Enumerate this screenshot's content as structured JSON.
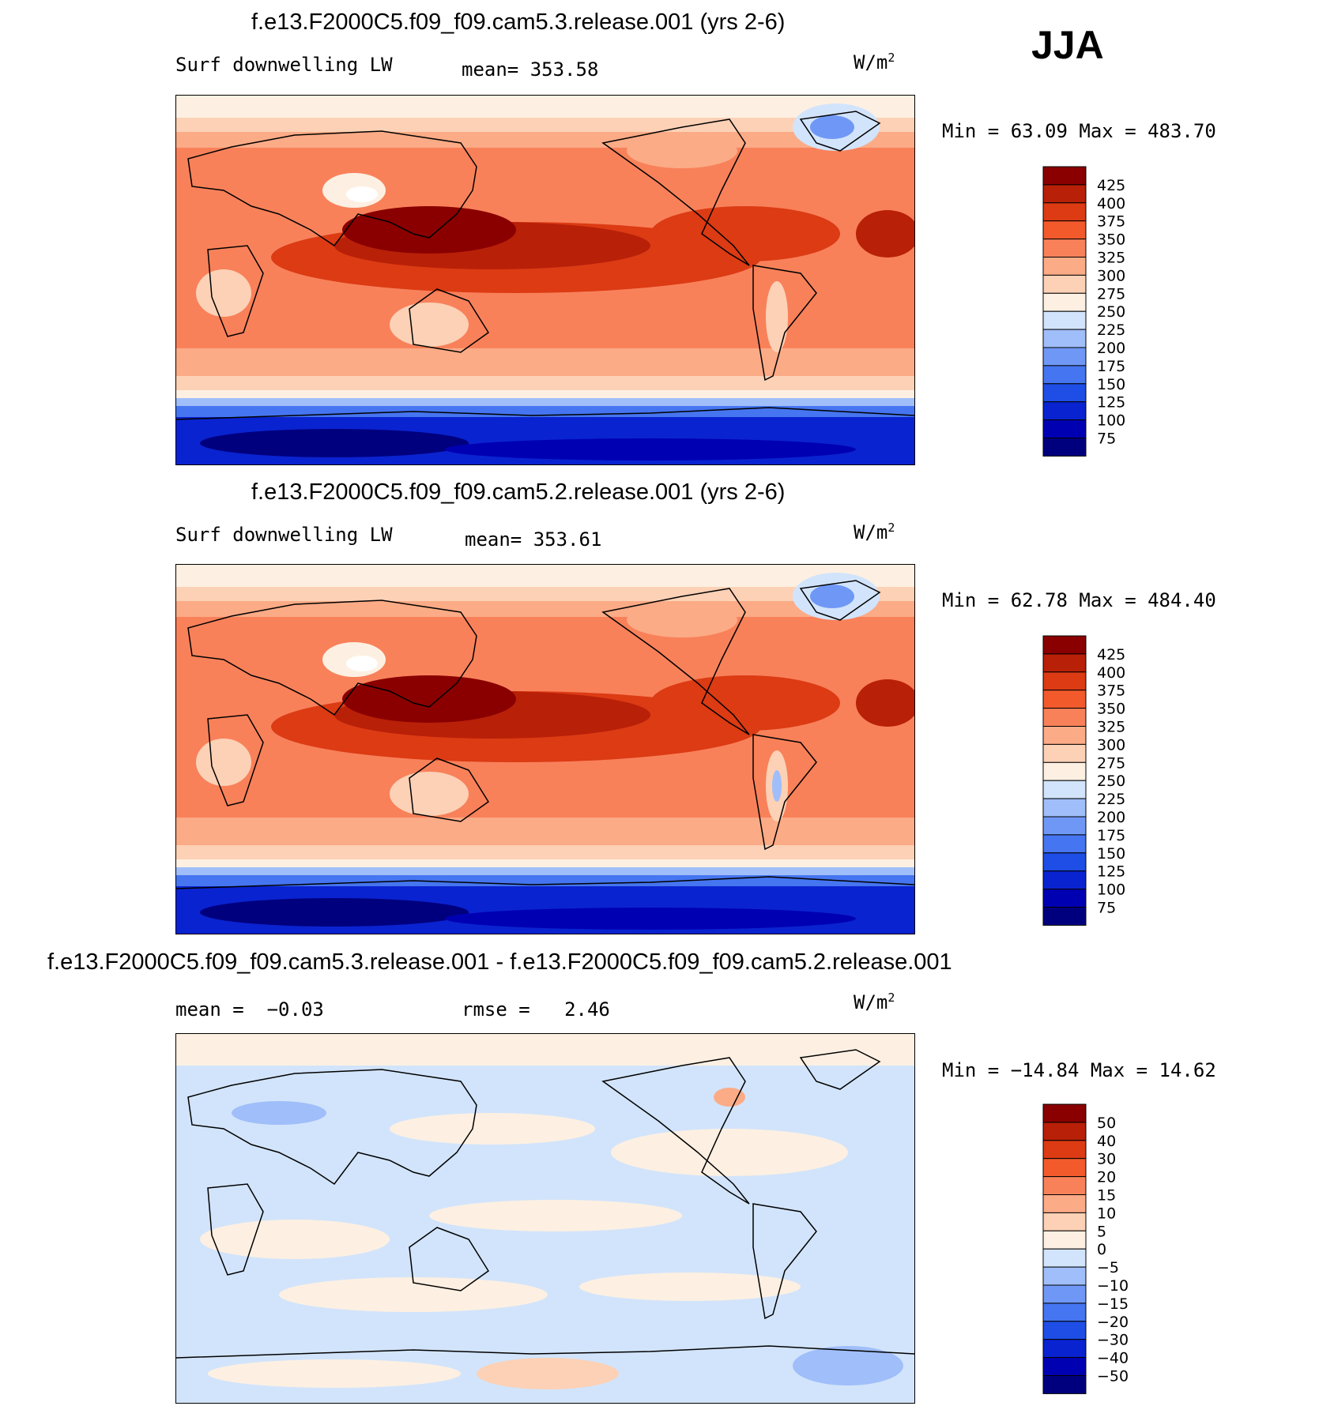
{
  "season": "JJA",
  "colors": {
    "abs_scale": [
      "#00007f",
      "#0000b3",
      "#0a23d0",
      "#1e4ee6",
      "#4575f0",
      "#6f98f6",
      "#a0bef9",
      "#d2e4fb",
      "#fdf0e2",
      "#fcd1b6",
      "#fbab86",
      "#f8815a",
      "#f25a2c",
      "#dc3b14",
      "#b82008",
      "#8a0000"
    ],
    "diff_scale": [
      "#00007f",
      "#0000b3",
      "#0a23d0",
      "#1e4ee6",
      "#4575f0",
      "#6f98f6",
      "#a0bef9",
      "#d2e4fb",
      "#fdf0e2",
      "#fcd1b6",
      "#fbab86",
      "#f8815a",
      "#f25a2c",
      "#dc3b14",
      "#b82008",
      "#8a0000"
    ]
  },
  "panels": [
    {
      "title": "f.e13.F2000C5.f09_f09.cam5.3.release.001 (yrs 2-6)",
      "left_label": "Surf downwelling LW",
      "stat_label": "mean=",
      "stat_value": "353.58",
      "units_base": "W/m",
      "units_exp": "2",
      "minmax": "Min =   63.09 Max =  483.70",
      "colorbar_labels": [
        "425",
        "400",
        "375",
        "350",
        "325",
        "300",
        "275",
        "250",
        "225",
        "200",
        "175",
        "150",
        "125",
        "100",
        "75"
      ]
    },
    {
      "title": "f.e13.F2000C5.f09_f09.cam5.2.release.001 (yrs 2-6)",
      "left_label": "Surf downwelling LW",
      "stat_label": "mean=",
      "stat_value": "353.61",
      "units_base": "W/m",
      "units_exp": "2",
      "minmax": "Min =   62.78 Max =  484.40",
      "colorbar_labels": [
        "425",
        "400",
        "375",
        "350",
        "325",
        "300",
        "275",
        "250",
        "225",
        "200",
        "175",
        "150",
        "125",
        "100",
        "75"
      ]
    },
    {
      "title": "f.e13.F2000C5.f09_f09.cam5.3.release.001 - f.e13.F2000C5.f09_f09.cam5.2.release.001",
      "mean_label": "mean =",
      "mean_value": "−0.03",
      "rmse_label": "rmse =",
      "rmse_value": "2.46",
      "units_base": "W/m",
      "units_exp": "2",
      "minmax": "Min = −14.84 Max =   14.62",
      "colorbar_labels": [
        "50",
        "40",
        "30",
        "20",
        "15",
        "10",
        "5",
        "0",
        "−5",
        "−10",
        "−15",
        "−20",
        "−30",
        "−40",
        "−50"
      ]
    }
  ],
  "chart_data": [
    {
      "type": "heatmap",
      "title": "f.e13.F2000C5.f09_f09.cam5.3.release.001 (yrs 2-6)",
      "variable": "Surf downwelling LW",
      "units": "W/m2",
      "mean": 353.58,
      "min": 63.09,
      "max": 483.7,
      "levels": [
        75,
        100,
        125,
        150,
        175,
        200,
        225,
        250,
        275,
        300,
        325,
        350,
        375,
        400,
        425
      ]
    },
    {
      "type": "heatmap",
      "title": "f.e13.F2000C5.f09_f09.cam5.2.release.001 (yrs 2-6)",
      "variable": "Surf downwelling LW",
      "units": "W/m2",
      "mean": 353.61,
      "min": 62.78,
      "max": 484.4,
      "levels": [
        75,
        100,
        125,
        150,
        175,
        200,
        225,
        250,
        275,
        300,
        325,
        350,
        375,
        400,
        425
      ]
    },
    {
      "type": "heatmap",
      "title": "f.e13.F2000C5.f09_f09.cam5.3.release.001 - f.e13.F2000C5.f09_f09.cam5.2.release.001",
      "units": "W/m2",
      "mean": -0.03,
      "rmse": 2.46,
      "min": -14.84,
      "max": 14.62,
      "levels": [
        -50,
        -40,
        -30,
        -20,
        -15,
        -10,
        -5,
        0,
        5,
        10,
        15,
        20,
        30,
        40,
        50
      ]
    }
  ]
}
